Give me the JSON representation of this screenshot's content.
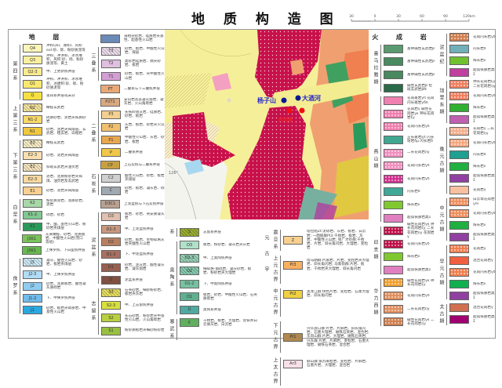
{
  "title": "地 质 构 造 图",
  "scale": {
    "ticks": [
      "30",
      "0",
      "30",
      "60",
      "90",
      "120km"
    ]
  },
  "map": {
    "labels": {
      "blue1": "杨子山",
      "blue2": "大酒河",
      "red1": "西河镇"
    },
    "grid_label": "126°",
    "colors": {
      "quaternary": "#f6ef9a",
      "granite": "#c8104a",
      "orange": "#f0a070",
      "green": "#40a060"
    }
  },
  "legend_left_header": "地 层",
  "legend_left_col1": [
    {
      "label": "第四系",
      "items": [
        {
          "code": "Q4",
          "text": "冲积Qal、湖积l、风积eol:砂、砾、粉砂质泥等",
          "color": "#fbf5b8"
        },
        {
          "code": "Q3",
          "text": "冲积、冲洪积、冰水堆积、风积:砂、砾、粉砂质泥等、黄土",
          "color": "#fbf0a0"
        },
        {
          "code": "Q2-3",
          "text": "中、上更新统并层",
          "color": "#f9ec90"
        },
        {
          "code": "Q1",
          "text": "冲积、冲洪积、冰水堆积、冰碛积:砂、砾、粉砂质泥等",
          "color": "#f8e870"
        },
        {
          "code": "Q",
          "text": "第四系并层或未分",
          "color": "#f6e040"
        }
      ]
    },
    {
      "label": "上第三系",
      "items": [
        {
          "code": "N2",
          "text": "橄榄玄武岩",
          "color": "#f8e8a0",
          "pattern": "hat"
        },
        {
          "code": "N1-2",
          "text": "砾质砂岩、泥岩夹铁质砂岩",
          "color": "#f8d868"
        },
        {
          "code": "N1",
          "text": "砂岩、泥岩夹褐煤层、玄武岩、粗玄岩、白榴岩",
          "color": "#f0c840"
        }
      ]
    },
    {
      "label": "下第三系",
      "items": [
        {
          "code": "E3",
          "text": "橄榄玄武岩",
          "color": "#faf0c8",
          "pattern": "hat"
        },
        {
          "code": "E2-3",
          "text": "砂岩、泥岩夹褐煤层",
          "color": "#fae0b0"
        },
        {
          "code": "E1",
          "text": "斜斑玄武岩夹油页岩",
          "color": "#fae8c0",
          "pattern": "hat"
        },
        {
          "code": "E2-3",
          "text": "泥岩、泥质粉砂岩夹褐煤、油页岩及玄武岩",
          "color": "#f8d8a0"
        },
        {
          "code": "E1",
          "text": "砂岩、泥岩夹褐煤层",
          "color": "#f8d090"
        }
      ]
    },
    {
      "label": "白垩系",
      "items": [
        {
          "code": "K2",
          "text": "粉砂质泥岩、泥质砂岩、泥岩",
          "color": "#a8d8a8"
        },
        {
          "code": "K1-2",
          "text": "砾岩、砂岩",
          "color": "#80c890"
        },
        {
          "code": "K1",
          "text": "中、酸、基性火山岩、粉砂岩夹煤层",
          "color": "#2a9a5a"
        }
      ]
    },
    {
      "label": "",
      "items": [
        {
          "code": "J3K1",
          "text": "灰黄橄榄、砂岩、泥质板岩、中酸性火山岩(茂口等组)",
          "color": "#7bc35a"
        },
        {
          "code": "J3K1",
          "text": "上侏罗统、下白垩统并层",
          "color": "#68b850"
        }
      ]
    },
    {
      "label": "侏罗系",
      "items": [
        {
          "code": "J3",
          "text": "凝灰、酸性火山岩、砂岩、板岩夹煤层",
          "color": "#d0ecf8",
          "pattern": "hat"
        },
        {
          "code": "J2-3",
          "text": "中、上侏罗统并层",
          "color": "#b0dcf4"
        },
        {
          "code": "J2",
          "text": "砂岩、泥质板岩、酸性凝灰质砾岩",
          "color": "#90ccf0"
        },
        {
          "code": "J1-2",
          "text": "下、中侏罗统并层",
          "color": "#70bcec"
        },
        {
          "code": "J1",
          "text": "砂岩、板岩夹砾质岩、中基性火山岩",
          "color": "#2aa8e0"
        }
      ]
    }
  ],
  "legend_left_col2": [
    {
      "label": "",
      "items": [
        {
          "code": "",
          "text": "海相杂砂岩、硅质岩夹基性、超基性火山岩",
          "color": "#6a8ab8"
        }
      ]
    },
    {
      "label": "三叠系",
      "items": [
        {
          "code": "T3",
          "text": "砂岩、板岩、中酸性火山岩、煤层",
          "color": "#f0e0f0",
          "pattern": "hat"
        },
        {
          "code": "T2",
          "text": "类砂岩硅质岩、偶夹砂岩、板岩",
          "color": "#e0c0e0"
        },
        {
          "code": "T1",
          "text": "砂岩、板岩、夹中酸性火山岩",
          "color": "#d4a0d4"
        }
      ]
    },
    {
      "label": "",
      "items": [
        {
          "code": "PT",
          "text": "二叠系与下三叠统并层",
          "color": "#e8a878"
        },
        {
          "code": "P2T1",
          "text": "安山岩及其凝灰熔岩、凝灰岩、火山角砾岩",
          "color": "#d8a880"
        }
      ]
    },
    {
      "label": "二叠系",
      "items": [
        {
          "code": "P3",
          "text": "长铁岭组灰岩、硅质岩、砂岩、板岩",
          "color": "#f4d090"
        },
        {
          "code": "P2",
          "text": "灰岩、板岩、砂岩夹火山岩",
          "color": "#f0c070"
        },
        {
          "code": "P1",
          "text": "中酸性火山岩、灰岩、砂岩、板岩",
          "color": "#e8a850"
        },
        {
          "code": "P",
          "text": "二叠系并层",
          "color": "#f0c848"
        }
      ]
    },
    {
      "label": "",
      "items": [
        {
          "code": "CP",
          "text": "上石炭统与二叠系并层",
          "color": "#c8a040"
        }
      ]
    },
    {
      "label": "石炭系",
      "items": [
        {
          "code": "C2",
          "text": "酸性火山岩、砂岩、板岩夹煤层",
          "color": "#d0d0d0"
        },
        {
          "code": "C",
          "text": "砂岩、板岩、凝灰岩、砾岩",
          "color": "#a0a8b0"
        }
      ]
    },
    {
      "label": "",
      "items": [
        {
          "code": "D3C1",
          "text": "上泥盆统与下石炭统并层",
          "color": "#b8a090"
        }
      ]
    },
    {
      "label": "泥盆系",
      "items": [
        {
          "code": "D3",
          "text": "板岩、砂岩、英安质凝灰岩",
          "color": "#e0c0b0"
        },
        {
          "code": "D2-3",
          "text": "中、上泥盆统并层",
          "color": "#c89880"
        },
        {
          "code": "D2",
          "text": "砂岩、板岩、生物碎屑灰岩夹酸性火山岩",
          "color": "#b88060"
        },
        {
          "code": "D1-2",
          "text": "下、中泥盆统并层",
          "color": "#a87060"
        },
        {
          "code": "D1",
          "text": "砂岩、泥灰岩、酸性凝灰岩、凝灰熔岩",
          "color": "#986050"
        },
        {
          "code": "D",
          "text": "泥盆系并层",
          "color": "#805040"
        }
      ]
    },
    {
      "label": "志留系",
      "items": [
        {
          "code": "S3",
          "text": "石英砂岩、细砂粉砂岩、板岩夹灰岩",
          "color": "#e8e060",
          "pattern": "hat"
        },
        {
          "code": "S2-3",
          "text": "中、上志留统并层",
          "color": "#d8e040"
        },
        {
          "code": "S2",
          "text": "长石砂岩、粉砂岩夹中基性火山岩、火山角砾岩",
          "color": "#b8d040"
        },
        {
          "code": "S1",
          "text": "粉砂质板岩夹细砂粉砂岩",
          "color": "#98c040"
        }
      ]
    }
  ],
  "legend_mid_col1": [
    {
      "label": "系",
      "items": [
        {
          "code": "S",
          "text": "志留系并层",
          "color": "#9ab030",
          "pattern": "hat"
        }
      ]
    },
    {
      "label": "奥陶系",
      "items": [
        {
          "code": "O3",
          "text": "板岩、粉砂岩、凝灰岩夹灰岩",
          "color": "#b0e0c8"
        },
        {
          "code": "O2-3",
          "text": "中、上奥陶统并层",
          "color": "#98d4b8",
          "pattern": "hat"
        },
        {
          "code": "O2",
          "text": "细碎屑-角砾岩、凝灰砂岩、板岩、粉砂岩夹大理岩",
          "color": "#88ccb0",
          "pattern": "hat"
        },
        {
          "code": "O1-2",
          "text": "下、中奥陶统并层",
          "color": "#78c0a0"
        },
        {
          "code": "O1",
          "text": "板岩、砂岩、中酸性火山岩、石英质砾岩",
          "color": "#60b090"
        },
        {
          "code": "O",
          "text": "奥陶系并层",
          "color": "#50a8a0"
        }
      ]
    },
    {
      "label": "寒武系",
      "items": [
        {
          "code": "€",
          "text": "千枚岩、板岩、大理岩、含铁青白云质灰岩、白云岩",
          "color": "#60b060"
        }
      ]
    }
  ],
  "legend_mid_col2_outer": "元古宇",
  "legend_mid_col2": [
    {
      "label": "震旦系",
      "items": [
        {
          "code": "Z",
          "text": "塔拉组Zt:泥砾岩、灰岩、板岩、白云岩; 一面坡群Pt3:千枚岩、板岩、灰岩、中酸性火山岩; 张广才岭群:千枚岩、片岩、斜长角闪岩、大理岩、变粒岩",
          "color": "#f8d090"
        }
      ]
    },
    {
      "label": "上元古界",
      "items": [
        {
          "code": "Pt3",
          "text": "塔马朗群:片麻岩、片岩、变粒岩夹大理岩、斜长角闪岩; 马家街群:片岩、板岩、千枚岩夹大理岩、斜长角闪岩",
          "color": "#f8b060"
        }
      ]
    },
    {
      "label": "中元古界",
      "items": [
        {
          "code": "Pt2",
          "text": "黑龙江群:绿色片岩、变粒岩、石墨大理岩、斜长角闪岩",
          "color": "#f0d040"
        }
      ]
    },
    {
      "label": "下元古界",
      "items": [
        {
          "code": "Pt1",
          "text": "兴华渡口群:片岩、片麻岩、斜长角闪岩、石墨大理岩、磁铁石英岩、混合岩; 东风山群:片岩、大理岩、磁铁石英岩; 兴东群:片岩、片麻岩、变粒岩、石墨大理岩、磁铁石英岩、混合岩",
          "color": "#b08850"
        }
      ]
    },
    {
      "label": "上太古界",
      "items": [
        {
          "code": "Ar3",
          "text": "麻山群:紫苏麻粒岩、变粒岩、片麻岩、石墨片岩、大理岩、混合岩",
          "color": "#f8e0e8"
        }
      ]
    }
  ],
  "legend_right_header": "火 成 岩",
  "legend_right_col1": [
    {
      "label": "喜马拉雅期",
      "items": [
        {
          "code": "",
          "text": "富钾碱性玄武岩β",
          "color": "#5a9a70"
        },
        {
          "code": "",
          "text": "富钾碱性玄武岩β",
          "color": "#4a8a60"
        },
        {
          "code": "",
          "text": "富钾碱性玄武岩β",
          "color": "#4a8860"
        },
        {
          "code": "",
          "text": "碱性玄武岩β 拉斑玄武岩βN",
          "color": "#2a6a48"
        }
      ]
    },
    {
      "label": "燕山期",
      "items": [
        {
          "code": "",
          "text": "花岗斑岩γπ 花岗闪长斑岩γδπ",
          "color": "#f080b0"
        },
        {
          "code": "",
          "text": "花岗岩γ 碱性花岗岩γκ 钾长花岗岩ξγ",
          "color": "#f080b0",
          "pattern": "dot"
        },
        {
          "code": "",
          "text": "花岗闪长岩γδ",
          "color": "#f080b0",
          "pattern": "dot"
        },
        {
          "code": "",
          "text": "正长斑岩ξπ 闪长玢岩δμ 闪长岩δ",
          "color": "#40a890"
        },
        {
          "code": "",
          "text": "二长花岗岩ηγ",
          "color": "#f090c0",
          "pattern": "dot"
        },
        {
          "code": "",
          "text": "花岗闪长岩γδ",
          "color": "#f090c0",
          "pattern": "dot"
        },
        {
          "code": "",
          "text": "花岗闪长岩γδ",
          "color": "#d03090",
          "pattern": "dot"
        },
        {
          "code": "",
          "text": "闪长岩δ",
          "color": "#40a898"
        },
        {
          "code": "",
          "text": "辉长岩ν",
          "color": "#80c830"
        },
        {
          "code": "",
          "text": "超镁铁质岩类Σ",
          "color": "#e080c0"
        }
      ]
    },
    {
      "label": "印支期",
      "items": [
        {
          "code": "",
          "text": "碱性花岗岩γκ 钾长花岗岩ξγ 二长花岗岩ηγ 花岗岩γ",
          "color": "#c0104a",
          "pattern": "dot"
        },
        {
          "code": "",
          "text": "花岗闪长岩γδ",
          "color": "#c0104a",
          "pattern": "dot"
        },
        {
          "code": "",
          "text": "辉长岩ν",
          "color": "#80c830"
        },
        {
          "code": "",
          "text": "超镁铁质岩类Σ",
          "color": "#e080c0"
        }
      ]
    },
    {
      "label": "华力西期",
      "items": [
        {
          "code": "",
          "text": "碱性花岗岩γκ 钾长花岗岩ξγ",
          "color": "#f0a030",
          "pattern": "dot"
        },
        {
          "code": "",
          "text": "花岗闪长岩γδ",
          "color": "#e09060",
          "pattern": "dot"
        },
        {
          "code": "",
          "text": "二长花岗岩ηγ",
          "color": "#e09060",
          "pattern": "dot"
        },
        {
          "code": "",
          "text": "碱性花岗岩γκ 二长花岗岩ηγ",
          "color": "#d08050",
          "pattern": "dot"
        }
      ]
    }
  ],
  "legend_right_col2": [
    {
      "label": "泥盆纪",
      "items": [
        {
          "code": "",
          "text": "花岗闪长岩γδ",
          "color": "#d08050",
          "pattern": "dot"
        },
        {
          "code": "",
          "text": "闪长岩δ",
          "color": "#70b0b8"
        },
        {
          "code": "",
          "text": "辉长岩ν",
          "color": "#70c030"
        },
        {
          "code": "",
          "text": "超镁铁质岩类Σ",
          "color": "#c040a0"
        }
      ]
    },
    {
      "label": "加里东期",
      "items": [
        {
          "code": "",
          "text": "钾长花岗岩ξγ 二长花岗岩ηγ",
          "color": "#f08060",
          "pattern": "dot"
        },
        {
          "code": "",
          "text": "花岗闪长岩γδ",
          "color": "#f08060",
          "pattern": "dot"
        },
        {
          "code": "",
          "text": "辉长岩ν",
          "color": "#30b030"
        },
        {
          "code": "",
          "text": "超镁铁质岩类Σ",
          "color": "#c060b0"
        }
      ]
    },
    {
      "label": "晚元古期",
      "items": [
        {
          "code": "",
          "text": "花岗岩γ 二长花岗岩ηγ",
          "color": "#f4b090",
          "pattern": "dot"
        },
        {
          "code": "",
          "text": "花岗闪长岩γδ",
          "color": "#f4a880",
          "pattern": "dot"
        },
        {
          "code": "",
          "text": "闪长岩δ",
          "color": "#20a090"
        },
        {
          "code": "",
          "text": "辉长岩ν",
          "color": "#20b040"
        },
        {
          "code": "",
          "text": "超镁铁质岩类Σ",
          "color": "#9040a0"
        },
        {
          "code": "",
          "text": "花岗岩γ",
          "color": "#f8c0a0"
        }
      ]
    },
    {
      "label": "中元古期",
      "items": [
        {
          "code": "",
          "text": "白云母花岗岩γm",
          "color": "#f09060",
          "pattern": "dot"
        },
        {
          "code": "",
          "text": "花岗闪长岩γδ",
          "color": "#f09060",
          "pattern": "dot"
        },
        {
          "code": "",
          "text": "辉长岩ν",
          "color": "#20b040"
        },
        {
          "code": "",
          "text": "超镁铁质岩类Σ",
          "color": "#9040a0"
        }
      ]
    },
    {
      "label": "早元古期",
      "items": [
        {
          "code": "",
          "text": "花岗岩γ",
          "color": "#f08050",
          "pattern": "dot"
        },
        {
          "code": "",
          "text": "混合花岗岩γ",
          "color": "#f06040"
        },
        {
          "code": "",
          "text": "花岗闪长岩γδ",
          "color": "#f08050",
          "pattern": "dot"
        },
        {
          "code": "",
          "text": "辉长岩ν",
          "color": "#10b050"
        },
        {
          "code": "",
          "text": "超镁铁质岩类Σ",
          "color": "#9040a0"
        }
      ]
    },
    {
      "label": "太古期",
      "items": [
        {
          "code": "",
          "text": "混合花岗岩γ",
          "color": "#d07050"
        },
        {
          "code": "",
          "text": "超镁铁质岩类Σ",
          "color": "#a00070"
        }
      ]
    }
  ]
}
